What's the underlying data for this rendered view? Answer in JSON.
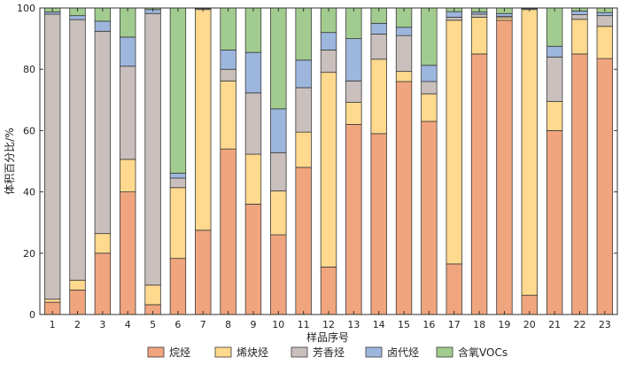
{
  "chart_data": {
    "type": "bar",
    "stacked": true,
    "title": "",
    "xlabel": "样品序号",
    "ylabel": "体积百分比/%",
    "ylim": [
      0,
      100
    ],
    "yticks": [
      0,
      20,
      40,
      60,
      80,
      100
    ],
    "grid": false,
    "legend_position": "bottom",
    "categories": [
      "1",
      "2",
      "3",
      "4",
      "5",
      "6",
      "7",
      "8",
      "9",
      "10",
      "11",
      "12",
      "13",
      "14",
      "15",
      "16",
      "17",
      "18",
      "19",
      "20",
      "21",
      "22",
      "23"
    ],
    "series": [
      {
        "name": "烷烃",
        "color": "#F0A57E",
        "values": [
          4,
          8,
          20,
          40,
          3.2,
          18.3,
          27.5,
          54,
          36,
          26,
          48,
          15.5,
          62,
          59,
          76,
          63,
          16.5,
          85,
          96,
          6.3,
          60,
          85,
          83.5
        ]
      },
      {
        "name": "烯炔烃",
        "color": "#FFD98E",
        "values": [
          1,
          3.2,
          6.4,
          10.6,
          6.4,
          23.1,
          72,
          22.2,
          16.3,
          14.3,
          11.5,
          63.5,
          7.2,
          24.3,
          3.3,
          9,
          79.5,
          12,
          0.8,
          93.2,
          9.5,
          11.3,
          10.5
        ]
      },
      {
        "name": "芳香烃",
        "color": "#C9BFBC",
        "values": [
          93,
          85,
          66,
          30.4,
          88.6,
          3.1,
          0.3,
          3.8,
          20,
          12.5,
          14.5,
          7.3,
          7,
          8.2,
          11.7,
          4,
          1,
          1,
          0.5,
          0,
          14.5,
          1.5,
          3.5
        ]
      },
      {
        "name": "卤代烃",
        "color": "#9DB6DD",
        "values": [
          0.7,
          1.3,
          3.3,
          9.5,
          1.3,
          1.6,
          0.2,
          6.3,
          13.2,
          14.3,
          9,
          5.7,
          13.8,
          3.5,
          2.7,
          5.3,
          1.8,
          0.7,
          0.9,
          0.3,
          3.5,
          1.2,
          1
        ]
      },
      {
        "name": "含氧VOCs",
        "color": "#A2CC8F",
        "values": [
          1.3,
          2.5,
          4.3,
          9.5,
          0.5,
          53.9,
          0,
          13.7,
          14.5,
          32.9,
          17,
          8,
          10,
          5,
          6.3,
          18.7,
          1.2,
          1.3,
          1.8,
          0.2,
          12.5,
          1,
          1.5
        ]
      }
    ]
  }
}
